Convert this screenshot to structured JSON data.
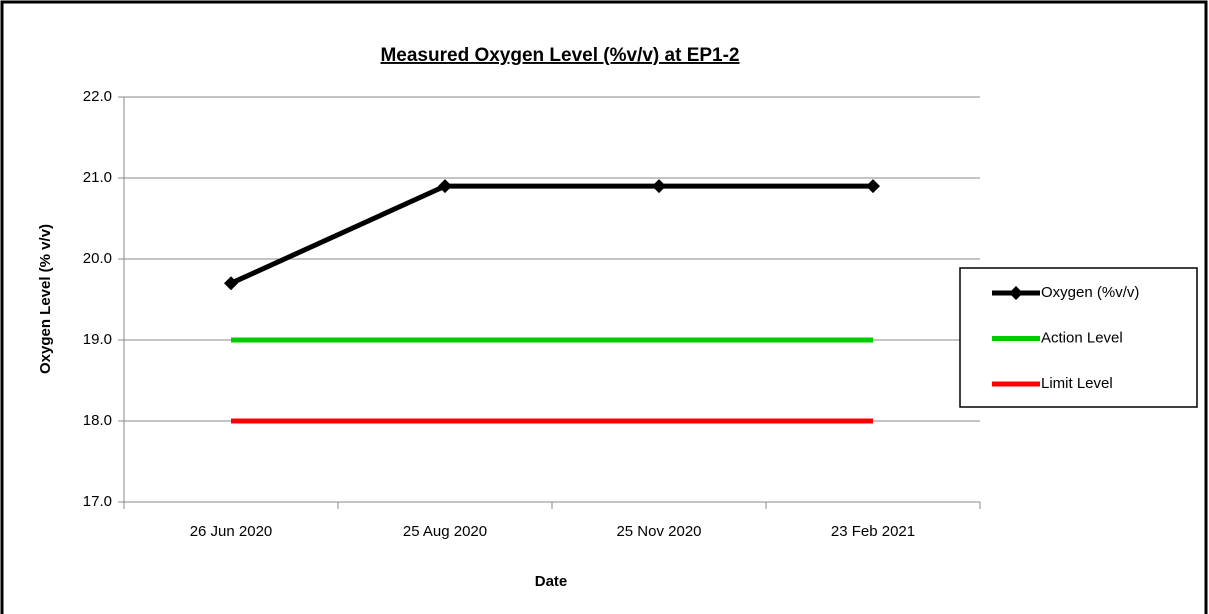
{
  "chart_data": {
    "type": "line",
    "title": "Measured Oxygen Level (%v/v) at EP1-2",
    "y_label": "Oxygen Level (% v/v)",
    "x_label": "Date",
    "categories": [
      "26 Jun 2020",
      "25 Aug 2020",
      "25 Nov 2020",
      "23 Feb 2021"
    ],
    "series": [
      {
        "name": "Oxygen (%v/v)",
        "color": "#000000",
        "marker": "diamond",
        "values": [
          19.7,
          20.9,
          20.9,
          20.9
        ]
      },
      {
        "name": "Action Level",
        "color": "#00cc00",
        "values": [
          19,
          19,
          19,
          19
        ]
      },
      {
        "name": "Limit Level",
        "color": "#ff0000",
        "values": [
          18,
          18,
          18,
          18
        ]
      }
    ],
    "ylim": [
      17,
      22
    ],
    "yticks": [
      {
        "value": 17,
        "label": "17.0"
      },
      {
        "value": 18,
        "label": "18.0"
      },
      {
        "value": 19,
        "label": "19.0"
      },
      {
        "value": 20,
        "label": "20.0"
      },
      {
        "value": 21,
        "label": "21.0"
      },
      {
        "value": 22,
        "label": "22.0"
      }
    ],
    "grid": true,
    "legend": "right"
  }
}
